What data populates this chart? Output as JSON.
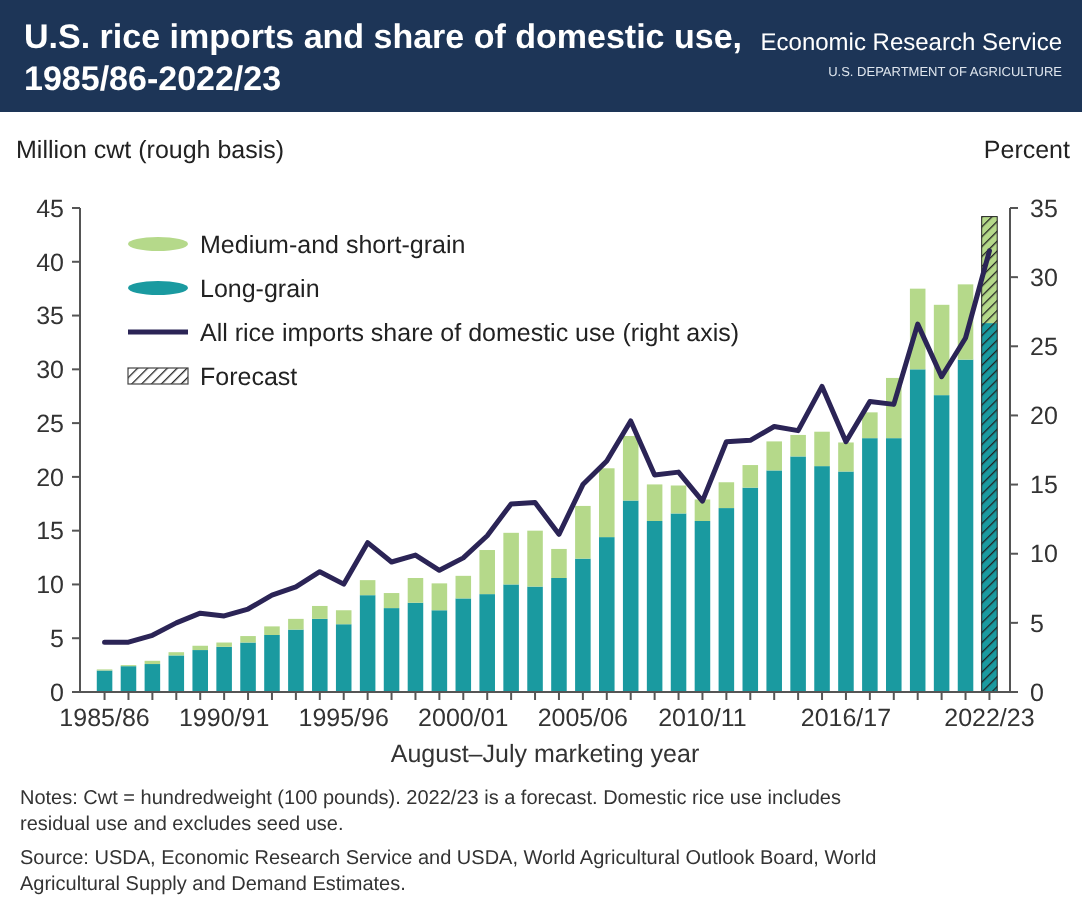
{
  "chart_data": {
    "type": "bar",
    "stacked": true,
    "title": "U.S. rice imports and share of domestic use, 1985/86-2022/23",
    "ylabel": "Million cwt (rough basis)",
    "y2label": "Percent",
    "xlabel": "August–July marketing year",
    "categories": [
      "1985/86",
      null,
      null,
      null,
      null,
      "1990/91",
      null,
      null,
      null,
      null,
      "1995/96",
      null,
      null,
      null,
      null,
      "2000/01",
      null,
      null,
      null,
      null,
      "2005/06",
      null,
      null,
      null,
      null,
      "2010/11",
      null,
      null,
      null,
      null,
      null,
      "2016/17",
      null,
      null,
      null,
      null,
      null,
      "2022/23"
    ],
    "series": [
      {
        "name": "Long-grain",
        "color": "#1a9aa0",
        "values": [
          2.0,
          2.4,
          2.6,
          3.4,
          3.9,
          4.2,
          4.6,
          5.3,
          5.8,
          6.8,
          6.3,
          9.0,
          7.8,
          8.3,
          7.6,
          8.7,
          9.1,
          10.0,
          9.8,
          10.6,
          12.4,
          14.4,
          17.8,
          15.9,
          16.6,
          15.9,
          17.1,
          19.0,
          20.6,
          21.9,
          21.0,
          20.5,
          23.6,
          23.6,
          30.0,
          27.6,
          30.9,
          34.3
        ]
      },
      {
        "name": "Medium-and short-grain",
        "color": "#b5d98a",
        "values": [
          0.1,
          0.1,
          0.3,
          0.3,
          0.4,
          0.4,
          0.6,
          0.8,
          1.0,
          1.2,
          1.3,
          1.4,
          1.4,
          2.3,
          2.5,
          2.1,
          4.1,
          4.8,
          5.2,
          2.7,
          4.9,
          6.4,
          6.0,
          3.4,
          2.6,
          2.0,
          2.4,
          2.1,
          2.7,
          2.0,
          3.2,
          2.7,
          2.4,
          5.6,
          7.5,
          8.4,
          7.0,
          9.9
        ]
      },
      {
        "name": "All rice imports share of domestic use (right axis)",
        "type": "line",
        "axis": "y2",
        "color": "#2b2456",
        "values": [
          3.6,
          3.6,
          4.1,
          5.0,
          5.7,
          5.5,
          6.0,
          7.0,
          7.6,
          8.7,
          7.8,
          10.8,
          9.4,
          9.9,
          8.8,
          9.7,
          11.3,
          13.6,
          13.7,
          11.4,
          15.0,
          16.7,
          19.6,
          15.7,
          15.9,
          13.8,
          18.1,
          18.2,
          19.2,
          18.9,
          22.1,
          18.1,
          21.0,
          20.8,
          26.6,
          22.8,
          25.6,
          31.9
        ]
      }
    ],
    "ylim": [
      0,
      45
    ],
    "yticks": [
      0,
      5,
      10,
      15,
      20,
      25,
      30,
      35,
      40,
      45
    ],
    "y2lim": [
      0,
      35
    ],
    "y2ticks": [
      0,
      5,
      10,
      15,
      20,
      25,
      30,
      35
    ],
    "bands": [
      {
        "axis": "x",
        "from": "2022/23",
        "to": "2022/23",
        "color": "#222222"
      }
    ],
    "legend": "top left",
    "grid": false,
    "annotations": [
      "Economic Research Service",
      "U.S. DEPARTMENT OF AGRICULTURE",
      "Forecast",
      "Notes: Cwt = hundredweight (100 pounds). 2022/23 is a forecast. Domestic rice use includes residual use and excludes seed use.",
      "Source: USDA, Economic Research Service and USDA, World Agricultural Outlook Board, World Agricultural Supply and Demand Estimates."
    ]
  }
}
